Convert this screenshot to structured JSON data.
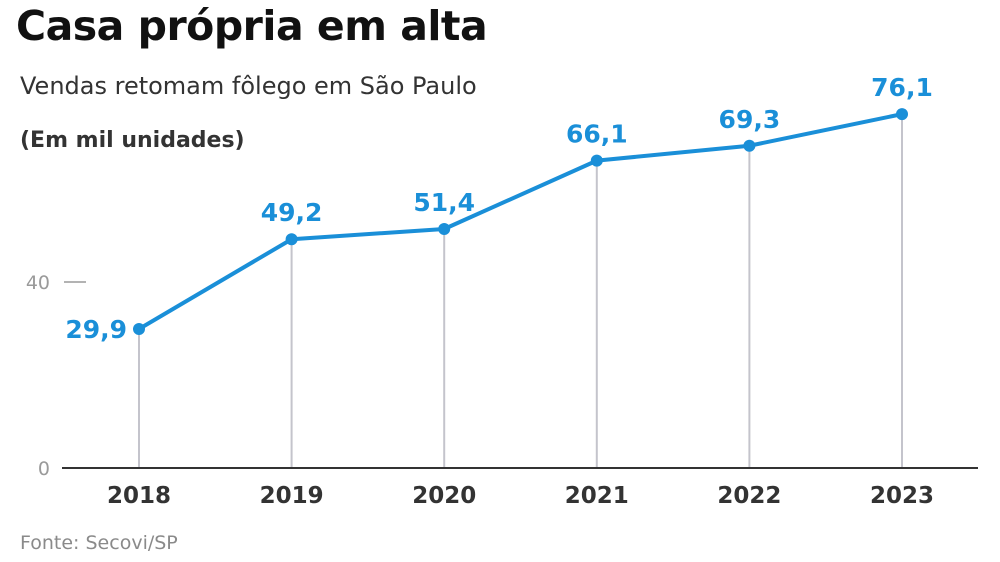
{
  "header": {
    "title": "Casa própria em alta",
    "subtitle": "Vendas retomam fôlego em São Paulo",
    "unit": "(Em mil unidades)"
  },
  "footer": {
    "source": "Fonte: Secovi/SP"
  },
  "colors": {
    "series": "#1a8fd8",
    "axis": "#333333",
    "drop_line": "#c4c4cc",
    "tick_label": "#9a9a9a"
  },
  "chart_data": {
    "type": "line",
    "title": "Casa própria em alta",
    "subtitle": "Vendas retomam fôlego em São Paulo",
    "ylabel": "(Em mil unidades)",
    "xlabel": "",
    "categories": [
      "2018",
      "2019",
      "2020",
      "2021",
      "2022",
      "2023"
    ],
    "values": [
      29.9,
      49.2,
      51.4,
      66.1,
      69.3,
      76.1
    ],
    "value_labels": [
      "29,9",
      "49,2",
      "51,4",
      "66,1",
      "69,3",
      "76,1"
    ],
    "y_ticks": [
      0,
      40
    ],
    "y_tick_labels": [
      "0",
      "40"
    ],
    "ylim": [
      0,
      76.1
    ],
    "grid": false,
    "legend": "none"
  }
}
